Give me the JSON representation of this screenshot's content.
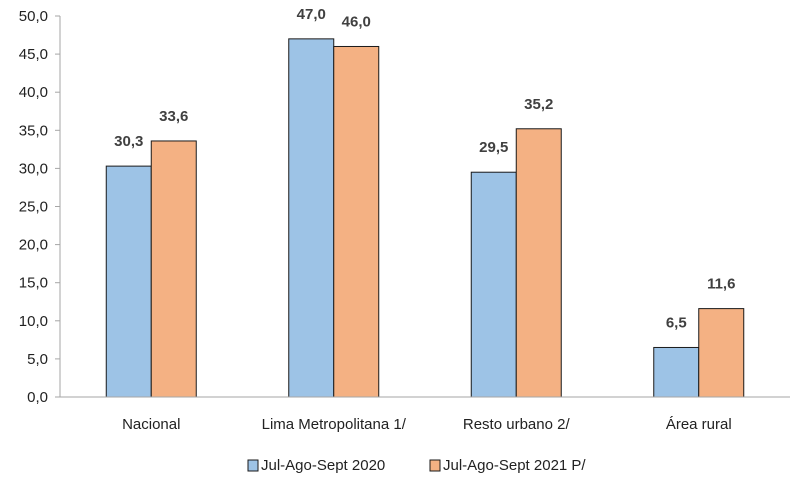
{
  "chart_data": {
    "type": "bar",
    "categories": [
      "Nacional",
      "Lima Metropolitana 1/",
      "Resto urbano 2/",
      "Área rural"
    ],
    "series": [
      {
        "name": "Jul-Ago-Sept 2020",
        "values": [
          30.3,
          47.0,
          29.5,
          6.5
        ],
        "labels": [
          "30,3",
          "47,0",
          "29,5",
          "6,5"
        ],
        "color": "#9dc3e6"
      },
      {
        "name": "Jul-Ago-Sept 2021 P/",
        "values": [
          33.6,
          46.0,
          35.2,
          11.6
        ],
        "labels": [
          "33,6",
          "46,0",
          "35,2",
          "11,6"
        ],
        "color": "#f4b183"
      }
    ],
    "ylim": [
      0,
      50
    ],
    "yticks": [
      "0,0",
      "5,0",
      "10,0",
      "15,0",
      "20,0",
      "25,0",
      "30,0",
      "35,0",
      "40,0",
      "45,0",
      "50,0"
    ],
    "title": "",
    "xlabel": "",
    "ylabel": "",
    "grid": false,
    "legend_position": "bottom",
    "bar_stroke": "#1a1a1a"
  }
}
